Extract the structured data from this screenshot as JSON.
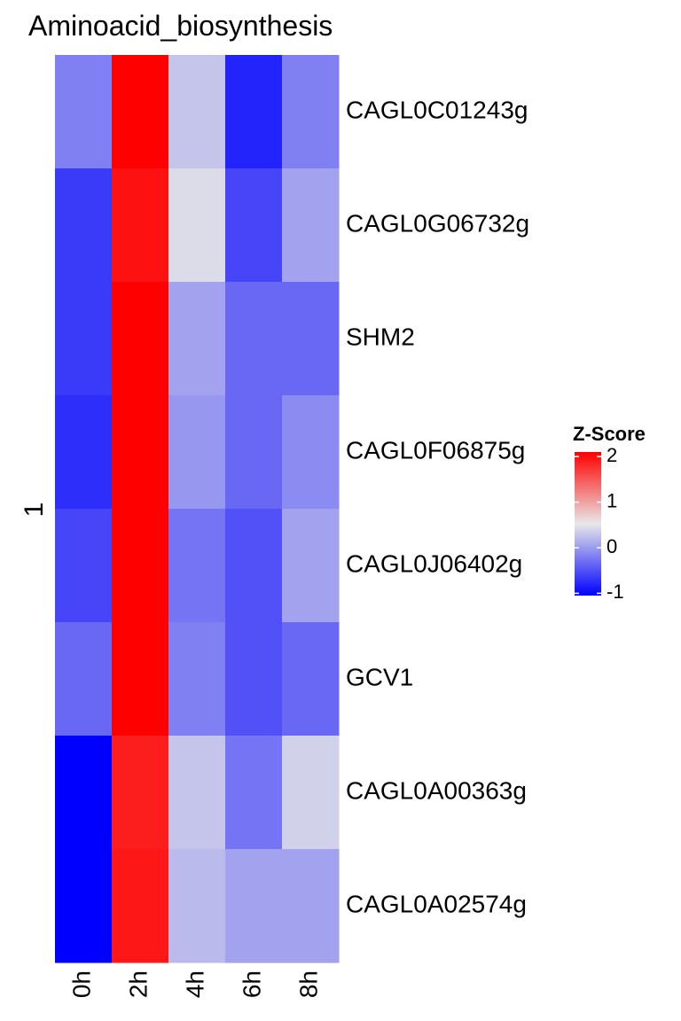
{
  "chart_data": {
    "type": "heatmap",
    "title": "Aminoacid_biosynthesis",
    "row_group_label": "1",
    "columns": [
      "0h",
      "2h",
      "4h",
      "6h",
      "8h"
    ],
    "rows": [
      "CAGL0C01243g",
      "CAGL0G06732g",
      "SHM2",
      "CAGL0F06875g",
      "CAGL0J06402g",
      "GCV1",
      "CAGL0A00363g",
      "CAGL0A02574g"
    ],
    "values": [
      [
        -0.45,
        2.05,
        -0.15,
        -0.85,
        -0.45
      ],
      [
        -0.75,
        1.85,
        -0.05,
        -0.7,
        -0.3
      ],
      [
        -0.75,
        2.05,
        -0.3,
        -0.55,
        -0.55
      ],
      [
        -0.8,
        2.05,
        -0.35,
        -0.55,
        -0.4
      ],
      [
        -0.7,
        2.05,
        -0.5,
        -0.65,
        -0.3
      ],
      [
        -0.55,
        2.05,
        -0.45,
        -0.65,
        -0.55
      ],
      [
        -1.05,
        1.75,
        -0.15,
        -0.5,
        -0.1
      ],
      [
        -1.0,
        1.8,
        -0.2,
        -0.3,
        -0.3
      ]
    ],
    "legend": {
      "title": "Z-Score",
      "ticks": [
        2,
        1,
        0,
        -1
      ],
      "range": [
        -1.05,
        2.1
      ],
      "colors": {
        "low": "#0000FF",
        "mid": "#E8E8E8",
        "high": "#FF0000"
      }
    }
  }
}
